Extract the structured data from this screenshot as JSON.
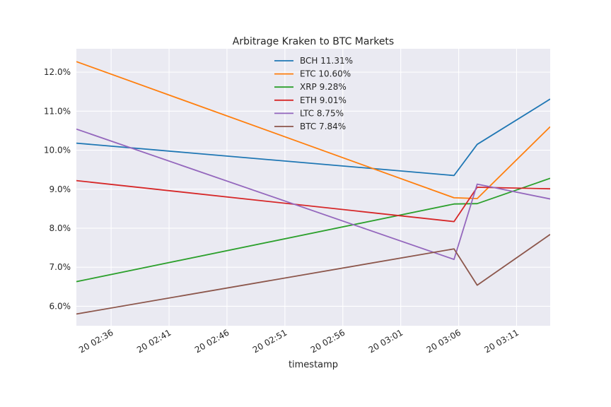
{
  "chart_data": {
    "type": "line",
    "title": "Arbitrage Kraken to BTC Markets",
    "xlabel": "timestamp",
    "ylabel": "",
    "x_ticks": [
      {
        "minutes": 3,
        "label": "20 02:36"
      },
      {
        "minutes": 8,
        "label": "20 02:41"
      },
      {
        "minutes": 13,
        "label": "20 02:46"
      },
      {
        "minutes": 18,
        "label": "20 02:51"
      },
      {
        "minutes": 23,
        "label": "20 02:56"
      },
      {
        "minutes": 28,
        "label": "20 03:01"
      },
      {
        "minutes": 33,
        "label": "20 03:06"
      },
      {
        "minutes": 38,
        "label": "20 03:11"
      }
    ],
    "xlim_minutes": [
      0,
      40.9
    ],
    "ylim": [
      5.5,
      12.6
    ],
    "y_ticks": [
      6.0,
      7.0,
      8.0,
      9.0,
      10.0,
      11.0,
      12.0
    ],
    "y_tick_labels": [
      "6.0%",
      "7.0%",
      "8.0%",
      "9.0%",
      "10.0%",
      "11.0%",
      "12.0%"
    ],
    "x_minutes": [
      0,
      32.6,
      34.6,
      40.9
    ],
    "grid": true,
    "legend_position": "top-center",
    "series": [
      {
        "name": "BCH 11.31%",
        "color": "#1f77b4",
        "values": [
          10.18,
          9.35,
          10.15,
          11.31
        ]
      },
      {
        "name": "ETC 10.60%",
        "color": "#ff7f0e",
        "values": [
          12.27,
          8.78,
          8.76,
          10.6
        ]
      },
      {
        "name": "XRP 9.28%",
        "color": "#2ca02c",
        "values": [
          6.63,
          8.62,
          8.63,
          9.28
        ]
      },
      {
        "name": "ETH 9.01%",
        "color": "#d62728",
        "values": [
          9.22,
          8.17,
          9.05,
          9.01
        ]
      },
      {
        "name": "LTC 8.75%",
        "color": "#9467bd",
        "values": [
          10.54,
          7.2,
          9.13,
          8.75
        ]
      },
      {
        "name": "BTC 7.84%",
        "color": "#8c564b",
        "values": [
          5.8,
          7.47,
          6.54,
          7.84
        ]
      }
    ]
  }
}
